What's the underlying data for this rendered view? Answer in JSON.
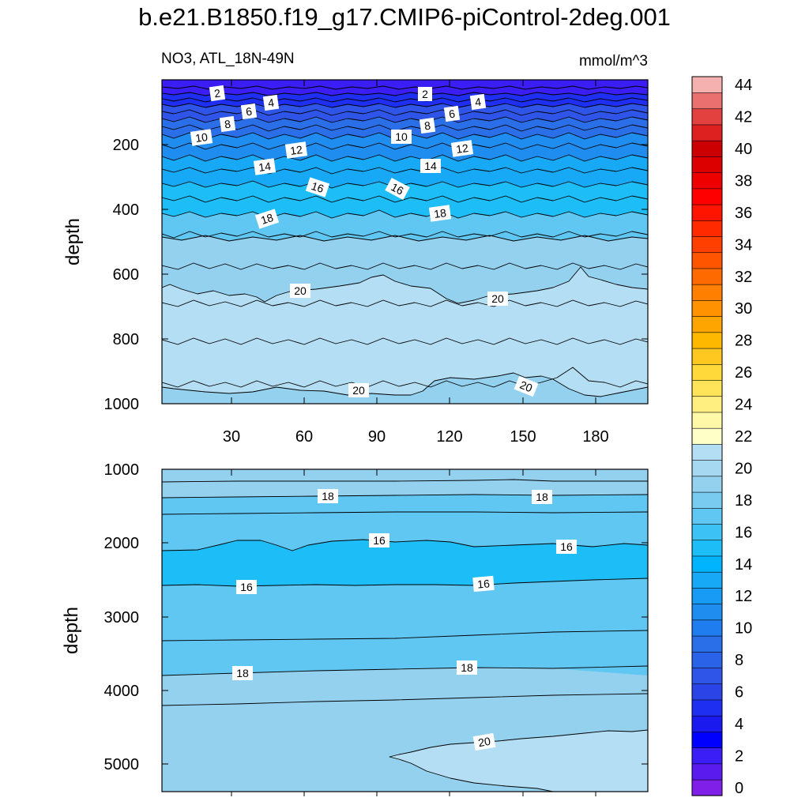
{
  "title": "b.e21.B1850.f19_g17.CMIP6-piControl-2deg.001",
  "subtitle_left": "NO3, ATL_18N-49N",
  "subtitle_right": "mmol/m^3",
  "colors": {
    "band_0_2": "#7f1fe8",
    "band_2_4": "#3b1ef5",
    "band_4_6": "#1f2ff2",
    "band_6_8": "#2e55e8",
    "band_8_10": "#2a6ee8",
    "band_10_12": "#1f8cf0",
    "band_12_14": "#17a9f5",
    "band_14_16": "#1dbef7",
    "band_16_18": "#60c6f2",
    "band_18_20": "#94d1ef",
    "band_20_22": "#b4def3"
  },
  "chart_data": [
    {
      "type": "contour",
      "panel": "upper",
      "variable": "NO3",
      "region": "ATL_18N-49N",
      "units": "mmol/m^3",
      "ylabel": "depth",
      "xlabel": "",
      "xlim": [
        0,
        200
      ],
      "ylim": [
        1000,
        0
      ],
      "x_ticks": [
        "30",
        "60",
        "90",
        "120",
        "150",
        "180"
      ],
      "y_ticks": [
        "200",
        "400",
        "600",
        "800",
        "1000"
      ],
      "contour_interval": 1,
      "contour_depths_at_x": {
        "x": [
          0,
          90,
          120,
          170,
          200
        ],
        "levels": [
          {
            "value": 2,
            "depth": [
              30,
              30,
              30,
              30,
              30
            ]
          },
          {
            "value": 4,
            "depth": [
              60,
              60,
              60,
              60,
              60
            ]
          },
          {
            "value": 6,
            "depth": [
              90,
              90,
              90,
              90,
              90
            ]
          },
          {
            "value": 8,
            "depth": [
              130,
              130,
              130,
              130,
              130
            ]
          },
          {
            "value": 10,
            "depth": [
              175,
              175,
              175,
              175,
              175
            ]
          },
          {
            "value": 12,
            "depth": [
              215,
              215,
              215,
              215,
              215
            ]
          },
          {
            "value": 14,
            "depth": [
              270,
              270,
              270,
              270,
              270
            ]
          },
          {
            "value": 16,
            "depth": [
              330,
              330,
              330,
              330,
              330
            ]
          },
          {
            "value": 18,
            "depth": [
              420,
              420,
              420,
              420,
              420
            ]
          },
          {
            "value": 19,
            "depth": [
              490,
              490,
              490,
              460,
              490
            ]
          },
          {
            "value": 20,
            "depth": [
              650,
              610,
              680,
              590,
              650
            ]
          },
          {
            "value": 20,
            "depth": [
              950,
              980,
              920,
              930,
              970
            ]
          }
        ]
      },
      "contour_labels": [
        "2",
        "4",
        "6",
        "8",
        "10",
        "12",
        "14",
        "16",
        "18",
        "20",
        "2",
        "4",
        "6",
        "8",
        "10",
        "12",
        "14",
        "16",
        "18",
        "20",
        "20",
        "20"
      ]
    },
    {
      "type": "contour",
      "panel": "lower",
      "variable": "NO3",
      "region": "ATL_18N-49N",
      "units": "mmol/m^3",
      "ylabel": "depth",
      "xlabel": "",
      "xlim": [
        0,
        200
      ],
      "ylim": [
        5350,
        1000
      ],
      "y_ticks": [
        "1000",
        "2000",
        "3000",
        "4000",
        "5000"
      ],
      "contour_interval": 1,
      "contour_depths_at_x": {
        "x": [
          0,
          90,
          200
        ],
        "levels": [
          {
            "value": 19,
            "depth": [
              1170,
              1160,
              1160
            ]
          },
          {
            "value": 18,
            "depth": [
              1380,
              1370,
              1350
            ]
          },
          {
            "value": 17,
            "depth": [
              1600,
              1590,
              1590
            ]
          },
          {
            "value": 16,
            "depth": [
              2100,
              1990,
              2050
            ]
          },
          {
            "value": 16,
            "depth": [
              2560,
              2560,
              2480
            ]
          },
          {
            "value": 17,
            "depth": [
              3300,
              3260,
              3180
            ]
          },
          {
            "value": 18,
            "depth": [
              3770,
              3720,
              3640
            ]
          },
          {
            "value": 19,
            "depth": [
              4220,
              4150,
              4040
            ]
          },
          {
            "value": 20,
            "depth": [
              4850,
              4850,
              4550
            ]
          }
        ]
      },
      "contour_labels": [
        "18",
        "18",
        "16",
        "16",
        "16",
        "16",
        "18",
        "18",
        "20"
      ]
    }
  ],
  "colorbar": {
    "labels": [
      "0",
      "2",
      "4",
      "6",
      "8",
      "10",
      "12",
      "14",
      "16",
      "18",
      "20",
      "22",
      "24",
      "26",
      "28",
      "30",
      "32",
      "34",
      "36",
      "38",
      "40",
      "42",
      "44"
    ],
    "colors": [
      "#7f1fe8",
      "#5a1bef",
      "#3b1ef5",
      "#0000ff",
      "#1a1aef",
      "#1f2ff2",
      "#2a44e8",
      "#2e55e8",
      "#2a62e8",
      "#2a6ee8",
      "#1f7df0",
      "#1f8cf0",
      "#179bf5",
      "#17a9f5",
      "#00b4ff",
      "#1dbef7",
      "#3dc2f5",
      "#60c6f2",
      "#7acbf0",
      "#94d1ef",
      "#a6d8f1",
      "#b4def3",
      "#ffffc8",
      "#fff8a8",
      "#ffee80",
      "#ffe45a",
      "#ffd83a",
      "#ffc820",
      "#ffb800",
      "#ffa500",
      "#ff9200",
      "#ff8000",
      "#ff6a00",
      "#ff5500",
      "#ff3f00",
      "#ff2a00",
      "#ff1400",
      "#ff0000",
      "#ee0000",
      "#dd0000",
      "#cc0000",
      "#dd2020",
      "#e34040",
      "#ea7070",
      "#f5b0b0"
    ]
  }
}
